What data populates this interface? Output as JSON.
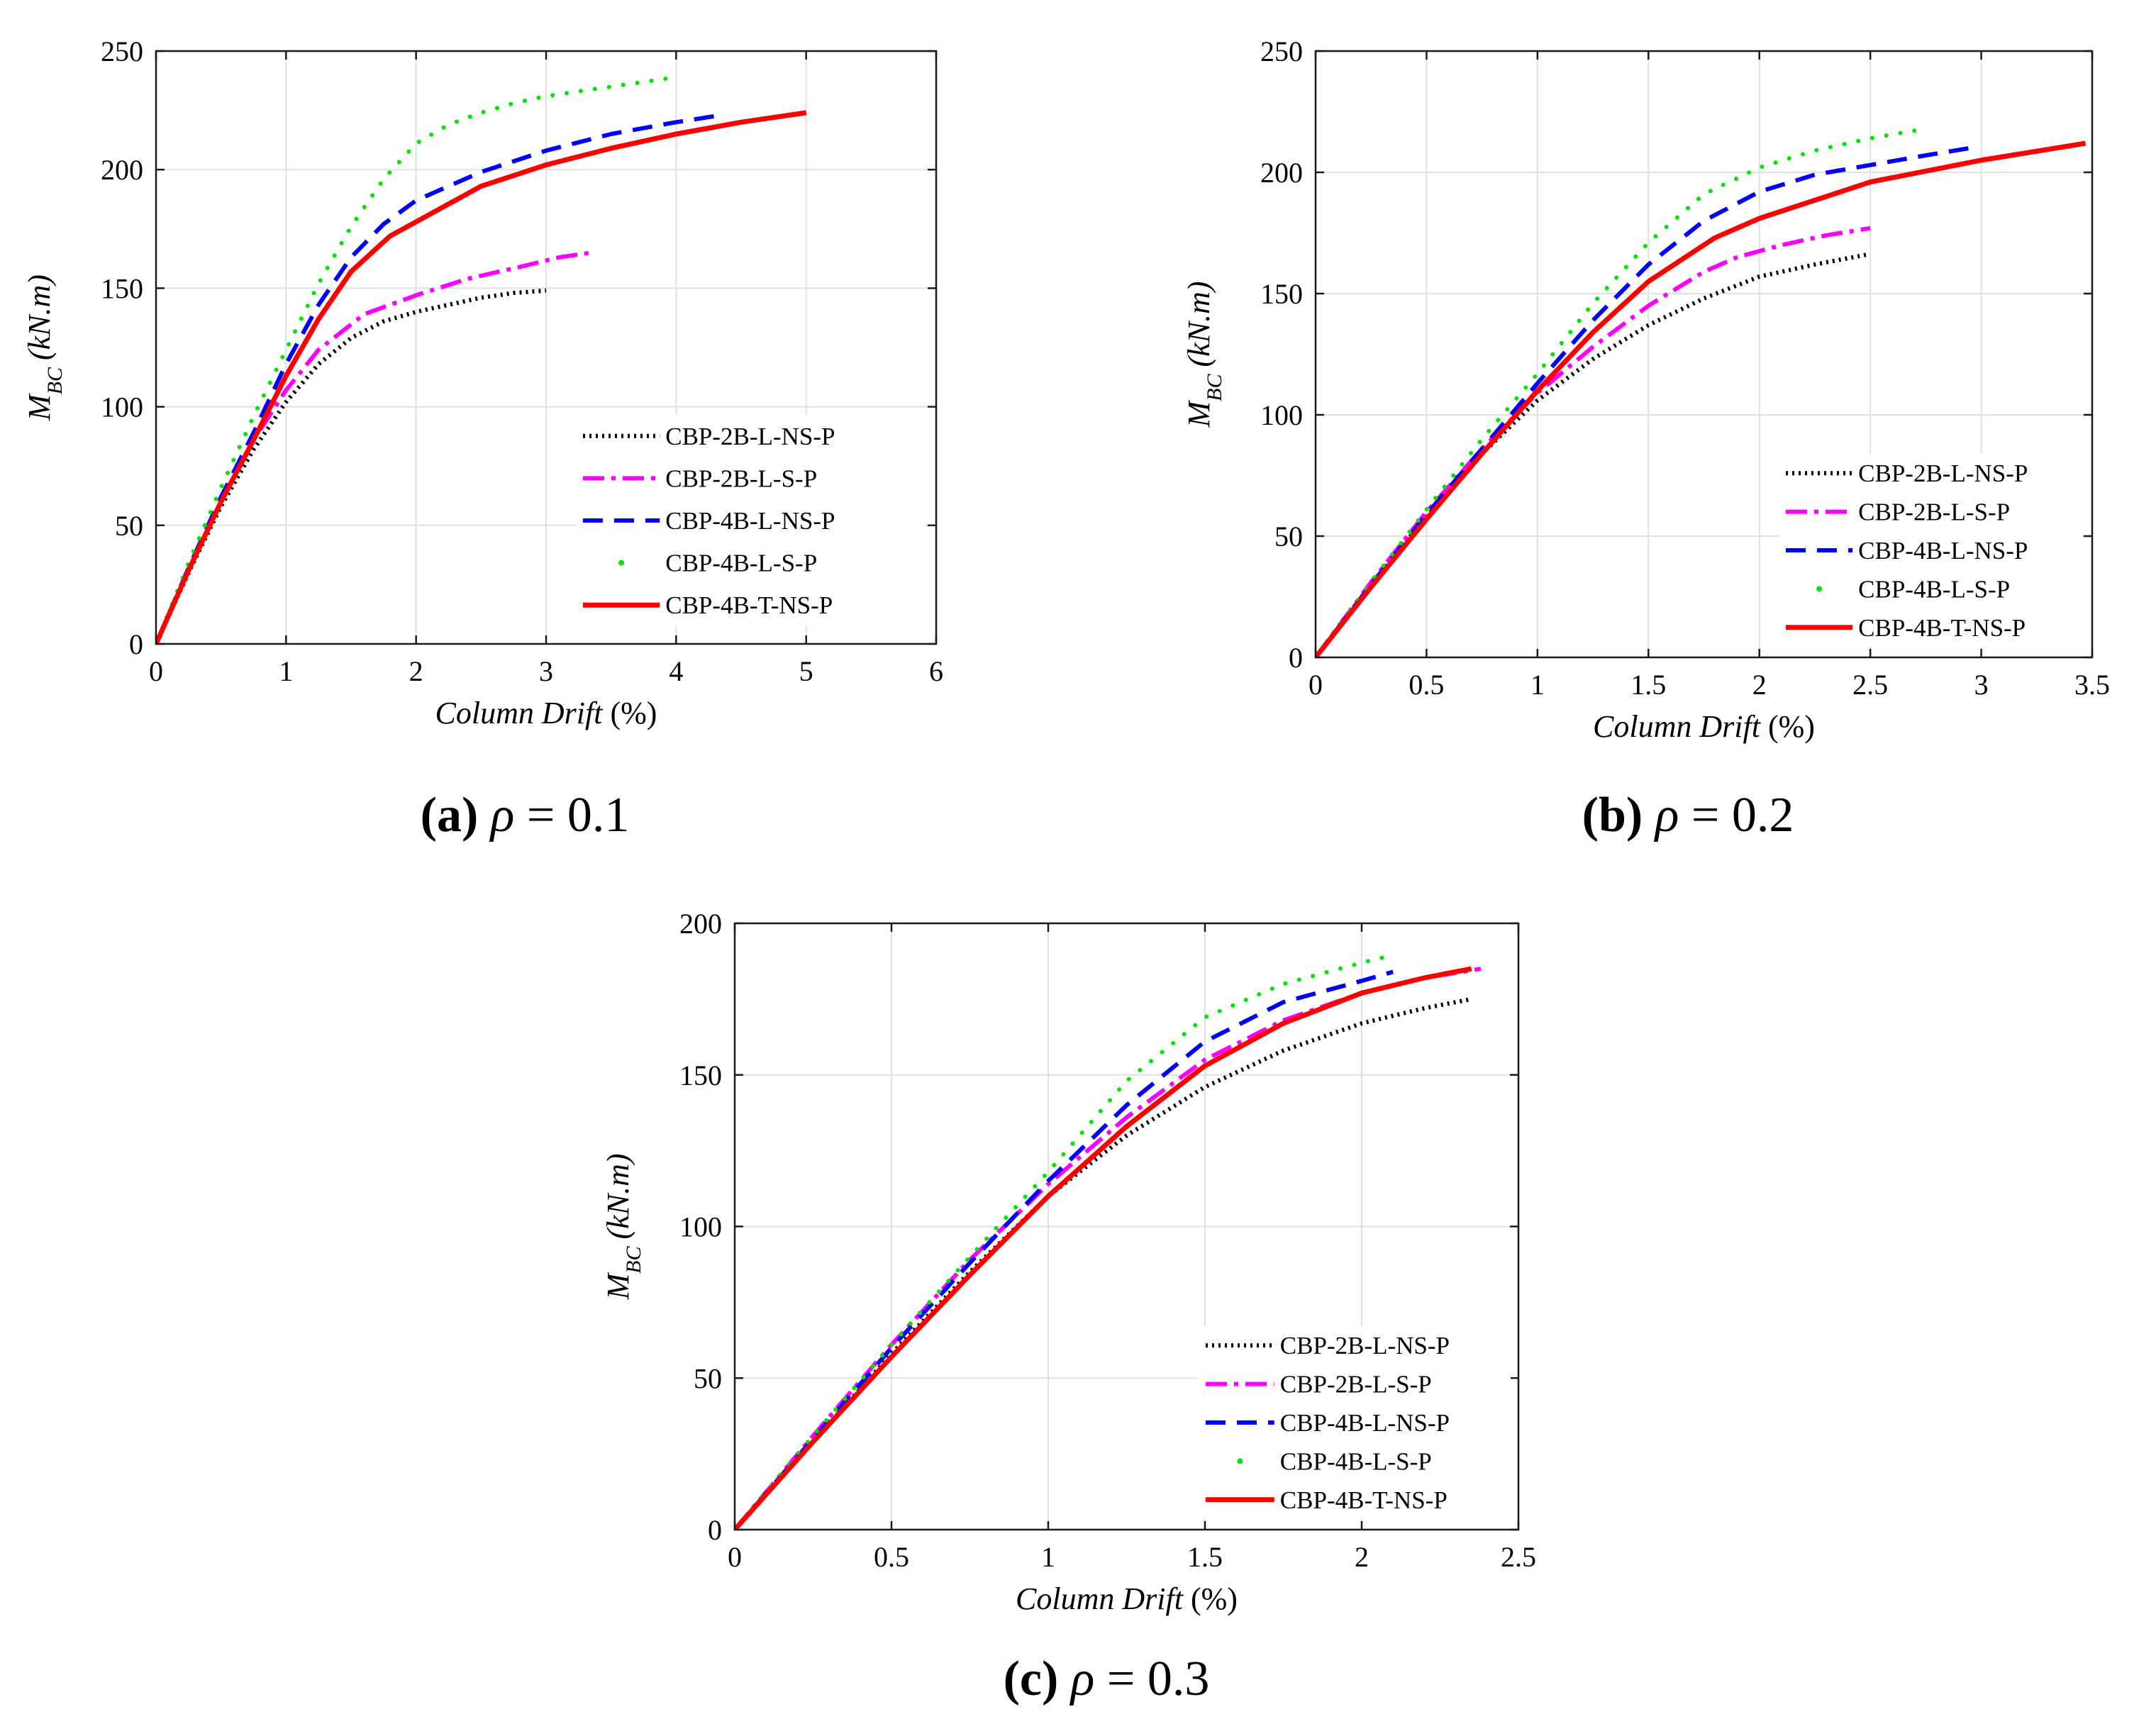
{
  "figure": {
    "legend_entries": [
      "CBP-2B-L-NS-P",
      "CBP-2B-L-S-P",
      "CBP-4B-L-NS-P",
      "CBP-4B-L-S-P",
      "CBP-4B-T-NS-P"
    ],
    "series_styles": [
      {
        "name": "CBP-2B-L-NS-P",
        "color": "#000000",
        "dash": "dotted"
      },
      {
        "name": "CBP-2B-L-S-P",
        "color": "#ff00ff",
        "dash": "dashdot"
      },
      {
        "name": "CBP-4B-L-NS-P",
        "color": "#0000ff",
        "dash": "dashed"
      },
      {
        "name": "CBP-4B-L-S-P",
        "color": "#00e600",
        "dash": "dots"
      },
      {
        "name": "CBP-4B-T-NS-P",
        "color": "#ff0000",
        "dash": "solid"
      }
    ]
  },
  "chart_data": [
    {
      "type": "line",
      "caption_letter": "(a)",
      "caption_rho": "ρ",
      "caption_value": "= 0.1",
      "xlabel": "Column Drift",
      "xlabel_unit": "(%)",
      "ylabel_main": "M",
      "ylabel_sub": "BC",
      "ylabel_unit": "(kN.m)",
      "xlim": [
        0,
        6
      ],
      "ylim": [
        0,
        250
      ],
      "xticks": [
        0,
        1,
        2,
        3,
        4,
        5,
        6
      ],
      "yticks": [
        0,
        50,
        100,
        150,
        200,
        250
      ],
      "xtick_labels": [
        "0",
        "1",
        "2",
        "3",
        "4",
        "5",
        "6"
      ],
      "ytick_labels": [
        "0",
        "50",
        "100",
        "150",
        "200",
        "250"
      ],
      "legend_position": "lower-right",
      "series": [
        {
          "name": "CBP-2B-L-NS-P",
          "x": [
            0,
            0.25,
            0.5,
            0.75,
            1.0,
            1.25,
            1.5,
            1.75,
            2.0,
            2.25,
            2.5,
            2.75,
            3.0
          ],
          "y": [
            0,
            30,
            58,
            82,
            102,
            118,
            129,
            136,
            140,
            143,
            146,
            148,
            149
          ]
        },
        {
          "name": "CBP-2B-L-S-P",
          "x": [
            0,
            0.25,
            0.5,
            0.75,
            1.0,
            1.25,
            1.6,
            2.0,
            2.4,
            2.8,
            3.1,
            3.35
          ],
          "y": [
            0,
            31,
            60,
            86,
            107,
            124,
            139,
            147,
            154,
            159,
            163,
            165
          ]
        },
        {
          "name": "CBP-4B-L-NS-P",
          "x": [
            0,
            0.25,
            0.5,
            0.75,
            1.0,
            1.25,
            1.5,
            1.75,
            2.0,
            2.5,
            3.0,
            3.5,
            4.0,
            4.35
          ],
          "y": [
            0,
            32,
            62,
            89,
            118,
            143,
            163,
            177,
            187,
            199,
            208,
            215,
            220,
            223
          ]
        },
        {
          "name": "CBP-4B-L-S-P",
          "x": [
            0,
            0.25,
            0.5,
            0.75,
            1.0,
            1.25,
            1.5,
            1.75,
            2.0,
            2.25,
            2.5,
            2.75,
            3.0,
            3.5,
            4.0
          ],
          "y": [
            0,
            34,
            66,
            96,
            124,
            152,
            176,
            196,
            211,
            219,
            224,
            228,
            231,
            235,
            239
          ]
        },
        {
          "name": "CBP-4B-T-NS-P",
          "x": [
            0,
            0.25,
            0.5,
            0.75,
            1.0,
            1.25,
            1.5,
            1.8,
            2.0,
            2.5,
            3.0,
            3.5,
            4.0,
            4.5,
            5.0
          ],
          "y": [
            0,
            31,
            60,
            86,
            113,
            137,
            157,
            172,
            178,
            193,
            202,
            209,
            215,
            220,
            224
          ]
        }
      ]
    },
    {
      "type": "line",
      "caption_letter": "(b)",
      "caption_rho": "ρ",
      "caption_value": "= 0.2",
      "xlabel": "Column Drift",
      "xlabel_unit": "(%)",
      "ylabel_main": "M",
      "ylabel_sub": "BC",
      "ylabel_unit": "(kN.m)",
      "xlim": [
        0,
        3.5
      ],
      "ylim": [
        0,
        250
      ],
      "xticks": [
        0,
        0.5,
        1,
        1.5,
        2,
        2.5,
        3,
        3.5
      ],
      "yticks": [
        0,
        50,
        100,
        150,
        200,
        250
      ],
      "xtick_labels": [
        "0",
        "0.5",
        "1",
        "1.5",
        "2",
        "2.5",
        "3",
        "3.5"
      ],
      "ytick_labels": [
        "0",
        "50",
        "100",
        "150",
        "200",
        "250"
      ],
      "legend_position": "lower-right",
      "series": [
        {
          "name": "CBP-2B-L-NS-P",
          "x": [
            0,
            0.25,
            0.5,
            0.75,
            1.0,
            1.25,
            1.5,
            1.75,
            2.0,
            2.25,
            2.48
          ],
          "y": [
            0,
            30,
            58,
            84,
            106,
            123,
            137,
            148,
            157,
            162,
            166
          ]
        },
        {
          "name": "CBP-2B-L-S-P",
          "x": [
            0,
            0.25,
            0.5,
            0.75,
            1.0,
            1.25,
            1.5,
            1.75,
            1.9,
            2.1,
            2.3,
            2.5
          ],
          "y": [
            0,
            31,
            60,
            86,
            109,
            128,
            145,
            159,
            165,
            170,
            174,
            177
          ]
        },
        {
          "name": "CBP-4B-L-NS-P",
          "x": [
            0,
            0.25,
            0.5,
            0.75,
            1.0,
            1.25,
            1.5,
            1.75,
            2.0,
            2.25,
            2.5,
            2.75,
            2.95
          ],
          "y": [
            0,
            30,
            59,
            86,
            113,
            139,
            162,
            180,
            192,
            199,
            203,
            207,
            210
          ]
        },
        {
          "name": "CBP-4B-L-S-P",
          "x": [
            0,
            0.25,
            0.5,
            0.75,
            1.0,
            1.25,
            1.5,
            1.75,
            2.0,
            2.25,
            2.5,
            2.75
          ],
          "y": [
            0,
            31,
            61,
            90,
            117,
            146,
            171,
            191,
            202,
            209,
            214,
            218
          ]
        },
        {
          "name": "CBP-4B-T-NS-P",
          "x": [
            0,
            0.25,
            0.5,
            0.75,
            1.0,
            1.25,
            1.5,
            1.8,
            2.0,
            2.5,
            3.0,
            3.47
          ],
          "y": [
            0,
            29,
            57,
            84,
            110,
            134,
            155,
            173,
            181,
            196,
            205,
            212
          ]
        }
      ]
    },
    {
      "type": "line",
      "caption_letter": "(c)",
      "caption_rho": "ρ",
      "caption_value": "= 0.3",
      "xlabel": "Column Drift",
      "xlabel_unit": "(%)",
      "ylabel_main": "M",
      "ylabel_sub": "BC",
      "ylabel_unit": "(kN.m)",
      "xlim": [
        0,
        2.5
      ],
      "ylim": [
        0,
        200
      ],
      "xticks": [
        0,
        0.5,
        1,
        1.5,
        2,
        2.5
      ],
      "yticks": [
        0,
        50,
        100,
        150,
        200
      ],
      "xtick_labels": [
        "0",
        "0.5",
        "1",
        "1.5",
        "2",
        "2.5"
      ],
      "ytick_labels": [
        "0",
        "50",
        "100",
        "150",
        "200"
      ],
      "legend_position": "lower-right",
      "series": [
        {
          "name": "CBP-2B-L-NS-P",
          "x": [
            0,
            0.25,
            0.5,
            0.75,
            1.0,
            1.25,
            1.5,
            1.75,
            2.0,
            2.2,
            2.35
          ],
          "y": [
            0,
            29,
            58,
            85,
            110,
            130,
            146,
            158,
            167,
            172,
            175
          ]
        },
        {
          "name": "CBP-2B-L-S-P",
          "x": [
            0,
            0.25,
            0.5,
            0.75,
            1.0,
            1.25,
            1.5,
            1.75,
            2.0,
            2.2,
            2.38
          ],
          "y": [
            0,
            31,
            61,
            89,
            114,
            136,
            155,
            168,
            177,
            182,
            185
          ]
        },
        {
          "name": "CBP-4B-L-NS-P",
          "x": [
            0,
            0.25,
            0.5,
            0.75,
            1.0,
            1.25,
            1.5,
            1.75,
            2.0,
            2.1
          ],
          "y": [
            0,
            30,
            60,
            88,
            115,
            140,
            161,
            174,
            181,
            184
          ]
        },
        {
          "name": "CBP-4B-L-S-P",
          "x": [
            0,
            0.25,
            0.5,
            0.75,
            1.0,
            1.25,
            1.5,
            1.75,
            2.0,
            2.08
          ],
          "y": [
            0,
            31,
            61,
            90,
            118,
            148,
            169,
            180,
            187,
            189
          ]
        },
        {
          "name": "CBP-4B-T-NS-P",
          "x": [
            0,
            0.25,
            0.5,
            0.75,
            1.0,
            1.25,
            1.5,
            1.75,
            2.0,
            2.2,
            2.35
          ],
          "y": [
            0,
            29,
            57,
            84,
            110,
            133,
            153,
            167,
            177,
            182,
            185
          ]
        }
      ]
    }
  ]
}
